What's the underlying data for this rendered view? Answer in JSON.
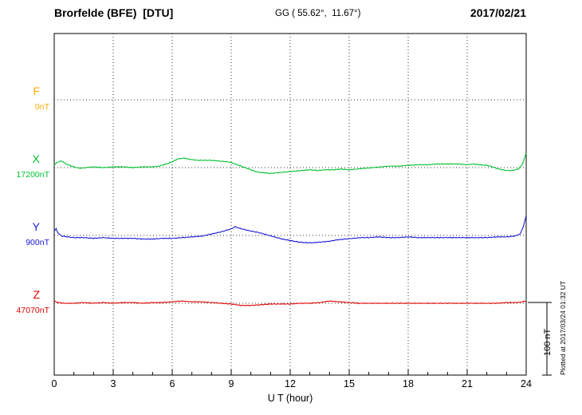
{
  "header": {
    "station": "Brorfelde (BFE)  [DTU]",
    "coords": "GG ( 55.62°,  11.67°)",
    "date": "2017/02/21"
  },
  "xaxis": {
    "label": "U T (hour)",
    "tick_labels": [
      "0",
      "3",
      "6",
      "9",
      "12",
      "15",
      "18",
      "21",
      "24"
    ]
  },
  "scalebar": {
    "label": "100 nT",
    "nT": 100
  },
  "footnote": "Plotted at 2017/03/24 01:32 UT",
  "chart_data": {
    "type": "line",
    "title": "Brorfelde (BFE) [DTU] magnetogram",
    "subtitle": "GG ( 55.62°, 11.67°)",
    "date": "2017/02/21",
    "xlabel": "U T (hour)",
    "xlim": [
      0,
      24
    ],
    "x_ticks": [
      0,
      3,
      6,
      9,
      12,
      15,
      18,
      21,
      24
    ],
    "grid": "dotted vertical at 3h intervals, dotted horizontal baselines per channel",
    "scale_bar_nT": 100,
    "series": [
      {
        "name": "F",
        "baseline_label": "0nT",
        "baseline_nT": 0,
        "color": "#ffa800",
        "points": []
      },
      {
        "name": "X",
        "baseline_label": "17200nT",
        "baseline_nT": 17200,
        "color": "#00c030",
        "points": [
          [
            0,
            4
          ],
          [
            0.2,
            8
          ],
          [
            0.4,
            9
          ],
          [
            0.6,
            5
          ],
          [
            0.8,
            3
          ],
          [
            1,
            1
          ],
          [
            1.3,
            -1
          ],
          [
            1.6,
            0
          ],
          [
            2,
            1
          ],
          [
            2.5,
            0
          ],
          [
            3,
            1
          ],
          [
            3.5,
            1
          ],
          [
            4,
            0
          ],
          [
            4.5,
            1
          ],
          [
            5,
            1
          ],
          [
            5.3,
            2
          ],
          [
            5.6,
            4
          ],
          [
            6,
            8
          ],
          [
            6.3,
            12
          ],
          [
            6.6,
            13
          ],
          [
            7,
            11
          ],
          [
            7.3,
            10
          ],
          [
            7.6,
            10
          ],
          [
            8,
            10
          ],
          [
            8.4,
            9
          ],
          [
            8.8,
            8
          ],
          [
            9,
            7
          ],
          [
            9.3,
            4
          ],
          [
            9.6,
            1
          ],
          [
            10,
            -3
          ],
          [
            10.3,
            -6
          ],
          [
            10.6,
            -7
          ],
          [
            11,
            -8
          ],
          [
            11.4,
            -7
          ],
          [
            11.8,
            -6
          ],
          [
            12.2,
            -5
          ],
          [
            12.6,
            -4
          ],
          [
            13,
            -3
          ],
          [
            13.4,
            -4
          ],
          [
            13.8,
            -3
          ],
          [
            14.2,
            -3
          ],
          [
            14.6,
            -2
          ],
          [
            15,
            -3
          ],
          [
            15.4,
            -2
          ],
          [
            15.8,
            -1
          ],
          [
            16.2,
            0
          ],
          [
            16.6,
            1
          ],
          [
            17,
            2
          ],
          [
            17.5,
            2
          ],
          [
            18,
            3
          ],
          [
            18.5,
            4
          ],
          [
            19,
            4
          ],
          [
            19.5,
            5
          ],
          [
            20,
            5
          ],
          [
            20.5,
            5
          ],
          [
            21,
            4
          ],
          [
            21.3,
            5
          ],
          [
            21.6,
            4
          ],
          [
            22,
            3
          ],
          [
            22.3,
            1
          ],
          [
            22.6,
            -2
          ],
          [
            23,
            -4
          ],
          [
            23.3,
            -4
          ],
          [
            23.6,
            -2
          ],
          [
            23.8,
            4
          ],
          [
            24,
            20
          ]
        ]
      },
      {
        "name": "Y",
        "baseline_label": "900nT",
        "baseline_nT": 900,
        "color": "#1818d8",
        "points": [
          [
            0,
            6
          ],
          [
            0.1,
            9
          ],
          [
            0.2,
            3
          ],
          [
            0.4,
            -1
          ],
          [
            0.7,
            -2
          ],
          [
            1,
            -3
          ],
          [
            1.5,
            -3
          ],
          [
            2,
            -4
          ],
          [
            2.5,
            -3
          ],
          [
            3,
            -4
          ],
          [
            3.5,
            -4
          ],
          [
            4,
            -4
          ],
          [
            4.5,
            -5
          ],
          [
            5,
            -5
          ],
          [
            5.5,
            -4
          ],
          [
            6,
            -4
          ],
          [
            6.5,
            -3
          ],
          [
            7,
            -2
          ],
          [
            7.5,
            -1
          ],
          [
            8,
            2
          ],
          [
            8.5,
            5
          ],
          [
            9,
            9
          ],
          [
            9.2,
            12
          ],
          [
            9.4,
            10
          ],
          [
            9.7,
            8
          ],
          [
            10,
            6
          ],
          [
            10.4,
            4
          ],
          [
            10.8,
            1
          ],
          [
            11.2,
            -2
          ],
          [
            11.6,
            -5
          ],
          [
            12,
            -7
          ],
          [
            12.4,
            -9
          ],
          [
            12.8,
            -10
          ],
          [
            13.2,
            -10
          ],
          [
            13.6,
            -9
          ],
          [
            14,
            -8
          ],
          [
            14.4,
            -6
          ],
          [
            14.8,
            -5
          ],
          [
            15.2,
            -4
          ],
          [
            15.6,
            -3
          ],
          [
            16,
            -3
          ],
          [
            16.5,
            -2
          ],
          [
            17,
            -3
          ],
          [
            17.5,
            -3
          ],
          [
            18,
            -2
          ],
          [
            18.5,
            -3
          ],
          [
            19,
            -3
          ],
          [
            19.5,
            -3
          ],
          [
            20,
            -3
          ],
          [
            20.5,
            -3
          ],
          [
            21,
            -3
          ],
          [
            21.5,
            -3
          ],
          [
            22,
            -3
          ],
          [
            22.5,
            -2
          ],
          [
            23,
            -2
          ],
          [
            23.4,
            -1
          ],
          [
            23.7,
            2
          ],
          [
            23.85,
            12
          ],
          [
            24,
            27
          ]
        ]
      },
      {
        "name": "Z",
        "baseline_label": "47070nT",
        "baseline_nT": 47070,
        "color": "#e00000",
        "points": [
          [
            0,
            3
          ],
          [
            0.2,
            1
          ],
          [
            0.5,
            0
          ],
          [
            1,
            0
          ],
          [
            1.5,
            1
          ],
          [
            2,
            0
          ],
          [
            2.5,
            1
          ],
          [
            3,
            0
          ],
          [
            3.5,
            1
          ],
          [
            4,
            1
          ],
          [
            4.5,
            0
          ],
          [
            5,
            1
          ],
          [
            5.5,
            1
          ],
          [
            6,
            2
          ],
          [
            6.5,
            3
          ],
          [
            7,
            2
          ],
          [
            7.5,
            2
          ],
          [
            8,
            1
          ],
          [
            8.5,
            0
          ],
          [
            9,
            -1
          ],
          [
            9.5,
            -3
          ],
          [
            10,
            -3
          ],
          [
            10.5,
            -2
          ],
          [
            11,
            -1
          ],
          [
            11.5,
            -1
          ],
          [
            12,
            -1
          ],
          [
            12.5,
            0
          ],
          [
            13,
            0
          ],
          [
            13.5,
            1
          ],
          [
            14,
            3
          ],
          [
            14.5,
            2
          ],
          [
            15,
            1
          ],
          [
            15.5,
            0
          ],
          [
            16,
            0
          ],
          [
            16.5,
            0
          ],
          [
            17,
            0
          ],
          [
            17.5,
            0
          ],
          [
            18,
            0
          ],
          [
            18.5,
            0
          ],
          [
            19,
            0
          ],
          [
            19.5,
            0
          ],
          [
            20,
            0
          ],
          [
            20.5,
            0
          ],
          [
            21,
            0
          ],
          [
            21.5,
            0
          ],
          [
            22,
            0
          ],
          [
            22.5,
            0
          ],
          [
            23,
            1
          ],
          [
            23.5,
            1
          ],
          [
            23.8,
            2
          ],
          [
            24,
            3
          ]
        ]
      }
    ]
  }
}
